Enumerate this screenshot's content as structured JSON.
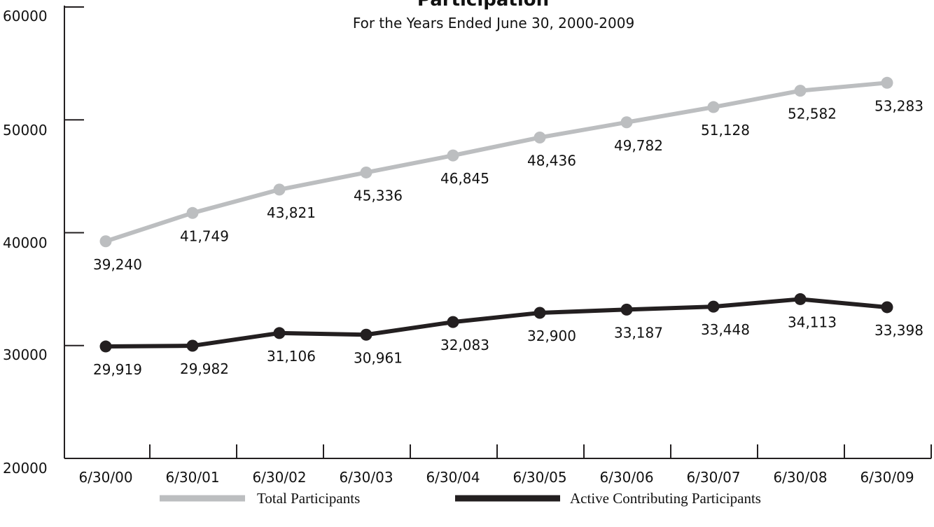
{
  "chart_data": {
    "type": "line",
    "title": "Participation",
    "subtitle": "For the Years Ended June 30, 2000-2009",
    "categories": [
      "6/30/00",
      "6/30/01",
      "6/30/02",
      "6/30/03",
      "6/30/04",
      "6/30/05",
      "6/30/06",
      "6/30/07",
      "6/30/08",
      "6/30/09"
    ],
    "ylim": [
      20000,
      60000
    ],
    "yticks": [
      "20000",
      "30000",
      "40000",
      "50000",
      "60000"
    ],
    "grid": false,
    "legend_position": "bottom",
    "series": [
      {
        "name": "Total Participants",
        "color": "#bcbec0",
        "values": [
          39240,
          41749,
          43821,
          45336,
          46845,
          48436,
          49782,
          51128,
          52582,
          53283
        ],
        "labels": [
          "39,240",
          "41,749",
          "43,821",
          "45,336",
          "46,845",
          "48,436",
          "49,782",
          "51,128",
          "52,582",
          "53,283"
        ]
      },
      {
        "name": "Active Contributing Participants",
        "color": "#231f20",
        "values": [
          29919,
          29982,
          31106,
          30961,
          32083,
          32900,
          33187,
          33448,
          34113,
          33398
        ],
        "labels": [
          "29,919",
          "29,982",
          "31,106",
          "30,961",
          "32,083",
          "32,900",
          "33,187",
          "33,448",
          "34,113",
          "33,398"
        ]
      }
    ]
  }
}
